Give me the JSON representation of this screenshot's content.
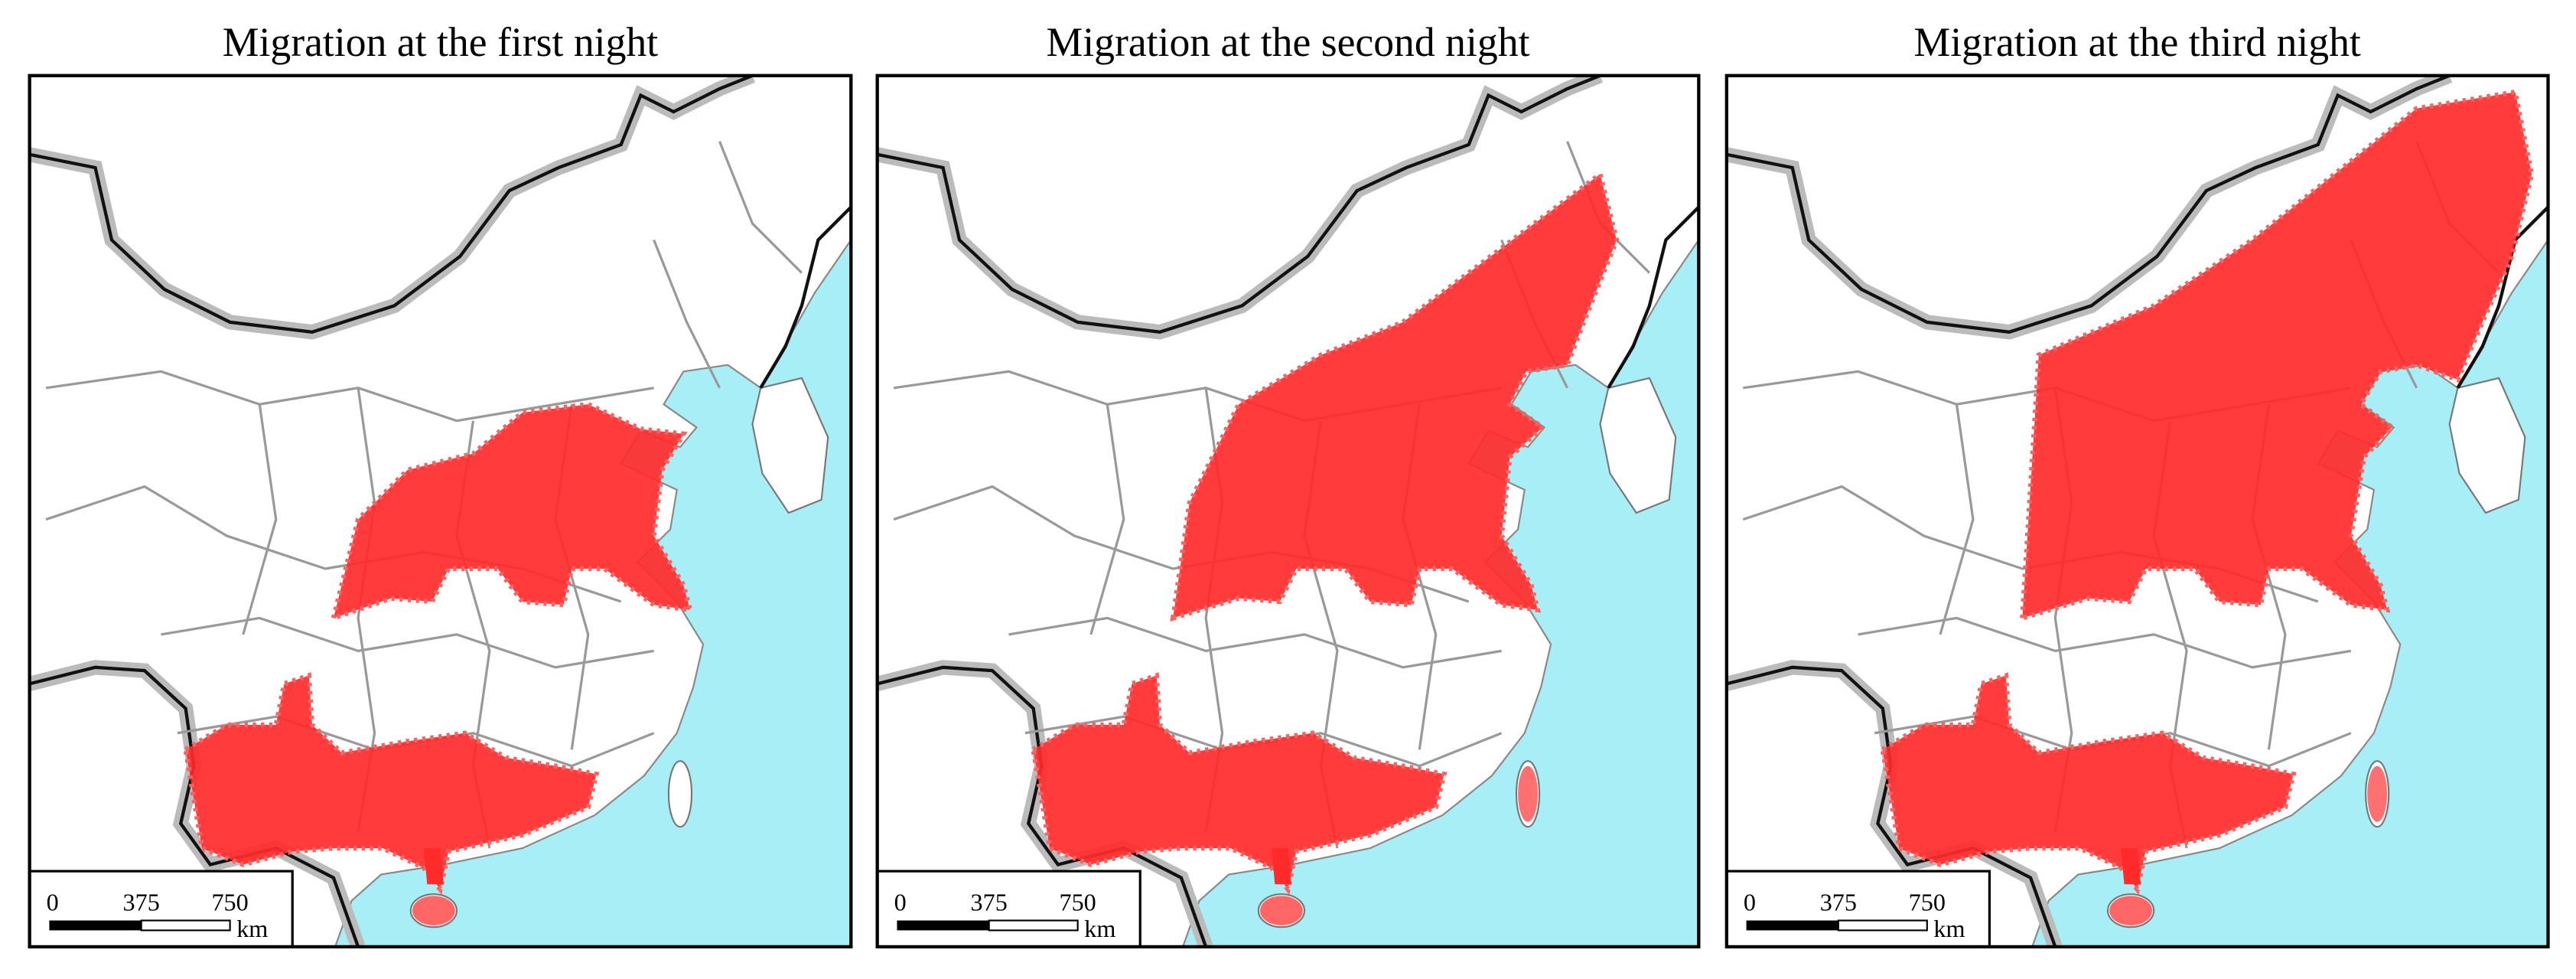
{
  "panels": [
    {
      "title": "Migration at the first night"
    },
    {
      "title": "Migration at the second night"
    },
    {
      "title": "Migration at the third night"
    }
  ],
  "scale_bar": {
    "ticks": [
      0,
      375,
      750
    ],
    "unit": "km"
  }
}
